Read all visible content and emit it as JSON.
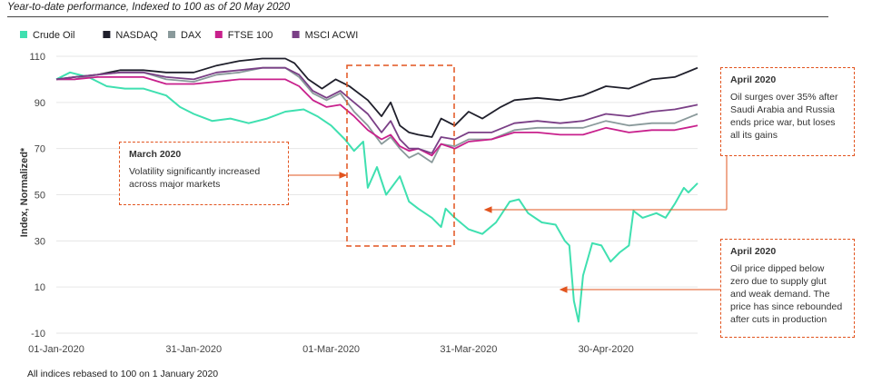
{
  "header": {
    "subtitle": "Year-to-date performance, Indexed to 100 as of 20 May 2020"
  },
  "footnote": "All indices rebased to 100 on 1 January  2020",
  "annotations": [
    {
      "title": "March 2020",
      "text": "Volatility significantly increased across major markets"
    },
    {
      "title": "April 2020",
      "text": "Oil surges over 35%  after Saudi Arabia and Russia ends price war, but loses all its gains"
    },
    {
      "title": "April 2020",
      "text": "Oil price dipped below zero due to supply glut and weak demand. The price has since rebounded after cuts in production"
    }
  ],
  "colors": {
    "crude_oil": "#3fe0b0",
    "nasdaq": "#1f1f2b",
    "dax": "#8a9a9b",
    "ftse": "#c8208c",
    "msci": "#7a3f86",
    "annotation": "#e2541f",
    "axis_text": "#444444",
    "grid": "#e6e6e6"
  },
  "chart_data": {
    "type": "line",
    "title": "",
    "xlabel": "",
    "ylabel": "Index, Normalized*",
    "x_ticks": [
      "01-Jan-2020",
      "31-Jan-2020",
      "01-Mar-2020",
      "31-Mar-2020",
      "30-Apr-2020"
    ],
    "y_ticks": [
      "-10",
      "10",
      "30",
      "50",
      "70",
      "90",
      "110"
    ],
    "ylim": [
      -10,
      110
    ],
    "xlim": [
      "2020-01-01",
      "2020-05-20"
    ],
    "grid": "horizontal",
    "legend_position": "top-left",
    "series": [
      {
        "name": "Crude Oil",
        "key": "crude_oil",
        "points": [
          [
            "2020-01-01",
            100
          ],
          [
            "2020-01-04",
            103
          ],
          [
            "2020-01-08",
            101
          ],
          [
            "2020-01-12",
            97
          ],
          [
            "2020-01-16",
            96
          ],
          [
            "2020-01-20",
            96
          ],
          [
            "2020-01-25",
            93
          ],
          [
            "2020-01-28",
            88
          ],
          [
            "2020-01-31",
            85
          ],
          [
            "2020-02-04",
            82
          ],
          [
            "2020-02-08",
            83
          ],
          [
            "2020-02-12",
            81
          ],
          [
            "2020-02-16",
            83
          ],
          [
            "2020-02-20",
            86
          ],
          [
            "2020-02-24",
            87
          ],
          [
            "2020-02-27",
            84
          ],
          [
            "2020-03-01",
            80
          ],
          [
            "2020-03-04",
            74
          ],
          [
            "2020-03-06",
            69
          ],
          [
            "2020-03-08",
            73
          ],
          [
            "2020-03-09",
            53
          ],
          [
            "2020-03-11",
            62
          ],
          [
            "2020-03-13",
            50
          ],
          [
            "2020-03-16",
            58
          ],
          [
            "2020-03-18",
            47
          ],
          [
            "2020-03-20",
            44
          ],
          [
            "2020-03-23",
            40
          ],
          [
            "2020-03-25",
            36
          ],
          [
            "2020-03-26",
            44
          ],
          [
            "2020-03-28",
            40
          ],
          [
            "2020-03-31",
            35
          ],
          [
            "2020-04-03",
            33
          ],
          [
            "2020-04-06",
            38
          ],
          [
            "2020-04-09",
            47
          ],
          [
            "2020-04-11",
            48
          ],
          [
            "2020-04-13",
            42
          ],
          [
            "2020-04-16",
            38
          ],
          [
            "2020-04-19",
            37
          ],
          [
            "2020-04-21",
            30
          ],
          [
            "2020-04-22",
            28
          ],
          [
            "2020-04-23",
            4
          ],
          [
            "2020-04-24",
            -5
          ],
          [
            "2020-04-25",
            15
          ],
          [
            "2020-04-27",
            29
          ],
          [
            "2020-04-29",
            28
          ],
          [
            "2020-05-01",
            21
          ],
          [
            "2020-05-03",
            25
          ],
          [
            "2020-05-05",
            28
          ],
          [
            "2020-05-06",
            43
          ],
          [
            "2020-05-08",
            40
          ],
          [
            "2020-05-11",
            42
          ],
          [
            "2020-05-13",
            40
          ],
          [
            "2020-05-15",
            46
          ],
          [
            "2020-05-17",
            53
          ],
          [
            "2020-05-18",
            51
          ],
          [
            "2020-05-20",
            55
          ]
        ]
      },
      {
        "name": "NASDAQ",
        "key": "nasdaq",
        "points": [
          [
            "2020-01-01",
            100
          ],
          [
            "2020-01-05",
            101
          ],
          [
            "2020-01-10",
            102
          ],
          [
            "2020-01-15",
            104
          ],
          [
            "2020-01-20",
            104
          ],
          [
            "2020-01-25",
            103
          ],
          [
            "2020-01-31",
            103
          ],
          [
            "2020-02-05",
            106
          ],
          [
            "2020-02-10",
            108
          ],
          [
            "2020-02-15",
            109
          ],
          [
            "2020-02-20",
            109
          ],
          [
            "2020-02-22",
            107
          ],
          [
            "2020-02-25",
            100
          ],
          [
            "2020-02-28",
            96
          ],
          [
            "2020-03-02",
            100
          ],
          [
            "2020-03-05",
            97
          ],
          [
            "2020-03-09",
            91
          ],
          [
            "2020-03-12",
            84
          ],
          [
            "2020-03-14",
            90
          ],
          [
            "2020-03-16",
            80
          ],
          [
            "2020-03-18",
            77
          ],
          [
            "2020-03-20",
            76
          ],
          [
            "2020-03-23",
            75
          ],
          [
            "2020-03-25",
            83
          ],
          [
            "2020-03-28",
            80
          ],
          [
            "2020-03-31",
            86
          ],
          [
            "2020-04-03",
            83
          ],
          [
            "2020-04-07",
            88
          ],
          [
            "2020-04-10",
            91
          ],
          [
            "2020-04-15",
            92
          ],
          [
            "2020-04-20",
            91
          ],
          [
            "2020-04-25",
            93
          ],
          [
            "2020-04-30",
            97
          ],
          [
            "2020-05-05",
            96
          ],
          [
            "2020-05-10",
            100
          ],
          [
            "2020-05-15",
            101
          ],
          [
            "2020-05-20",
            105
          ]
        ]
      },
      {
        "name": "DAX",
        "key": "dax",
        "points": [
          [
            "2020-01-01",
            100
          ],
          [
            "2020-01-05",
            100
          ],
          [
            "2020-01-10",
            102
          ],
          [
            "2020-01-15",
            103
          ],
          [
            "2020-01-20",
            103
          ],
          [
            "2020-01-25",
            100
          ],
          [
            "2020-01-31",
            99
          ],
          [
            "2020-02-05",
            102
          ],
          [
            "2020-02-10",
            103
          ],
          [
            "2020-02-15",
            105
          ],
          [
            "2020-02-20",
            105
          ],
          [
            "2020-02-23",
            101
          ],
          [
            "2020-02-26",
            94
          ],
          [
            "2020-02-29",
            91
          ],
          [
            "2020-03-03",
            94
          ],
          [
            "2020-03-06",
            86
          ],
          [
            "2020-03-09",
            80
          ],
          [
            "2020-03-12",
            72
          ],
          [
            "2020-03-14",
            75
          ],
          [
            "2020-03-16",
            70
          ],
          [
            "2020-03-18",
            66
          ],
          [
            "2020-03-20",
            68
          ],
          [
            "2020-03-23",
            64
          ],
          [
            "2020-03-25",
            72
          ],
          [
            "2020-03-28",
            71
          ],
          [
            "2020-03-31",
            74
          ],
          [
            "2020-04-05",
            74
          ],
          [
            "2020-04-10",
            78
          ],
          [
            "2020-04-15",
            79
          ],
          [
            "2020-04-20",
            79
          ],
          [
            "2020-04-25",
            79
          ],
          [
            "2020-04-30",
            82
          ],
          [
            "2020-05-05",
            80
          ],
          [
            "2020-05-10",
            81
          ],
          [
            "2020-05-15",
            81
          ],
          [
            "2020-05-20",
            85
          ]
        ]
      },
      {
        "name": "FTSE 100",
        "key": "ftse",
        "points": [
          [
            "2020-01-01",
            100
          ],
          [
            "2020-01-05",
            100
          ],
          [
            "2020-01-10",
            101
          ],
          [
            "2020-01-15",
            101
          ],
          [
            "2020-01-20",
            101
          ],
          [
            "2020-01-25",
            98
          ],
          [
            "2020-01-31",
            98
          ],
          [
            "2020-02-05",
            99
          ],
          [
            "2020-02-10",
            100
          ],
          [
            "2020-02-15",
            100
          ],
          [
            "2020-02-20",
            100
          ],
          [
            "2020-02-23",
            97
          ],
          [
            "2020-02-26",
            91
          ],
          [
            "2020-02-29",
            88
          ],
          [
            "2020-03-03",
            89
          ],
          [
            "2020-03-06",
            84
          ],
          [
            "2020-03-09",
            78
          ],
          [
            "2020-03-12",
            74
          ],
          [
            "2020-03-14",
            76
          ],
          [
            "2020-03-16",
            71
          ],
          [
            "2020-03-18",
            69
          ],
          [
            "2020-03-20",
            70
          ],
          [
            "2020-03-23",
            67
          ],
          [
            "2020-03-25",
            72
          ],
          [
            "2020-03-28",
            70
          ],
          [
            "2020-03-31",
            73
          ],
          [
            "2020-04-05",
            74
          ],
          [
            "2020-04-10",
            77
          ],
          [
            "2020-04-15",
            77
          ],
          [
            "2020-04-20",
            76
          ],
          [
            "2020-04-25",
            76
          ],
          [
            "2020-04-30",
            79
          ],
          [
            "2020-05-05",
            77
          ],
          [
            "2020-05-10",
            78
          ],
          [
            "2020-05-15",
            78
          ],
          [
            "2020-05-20",
            80
          ]
        ]
      },
      {
        "name": "MSCI ACWI",
        "key": "msci",
        "points": [
          [
            "2020-01-01",
            100
          ],
          [
            "2020-01-05",
            101
          ],
          [
            "2020-01-10",
            102
          ],
          [
            "2020-01-15",
            103
          ],
          [
            "2020-01-20",
            103
          ],
          [
            "2020-01-25",
            101
          ],
          [
            "2020-01-31",
            100
          ],
          [
            "2020-02-05",
            103
          ],
          [
            "2020-02-10",
            104
          ],
          [
            "2020-02-15",
            105
          ],
          [
            "2020-02-20",
            105
          ],
          [
            "2020-02-23",
            102
          ],
          [
            "2020-02-26",
            95
          ],
          [
            "2020-02-29",
            92
          ],
          [
            "2020-03-03",
            95
          ],
          [
            "2020-03-06",
            90
          ],
          [
            "2020-03-09",
            85
          ],
          [
            "2020-03-12",
            77
          ],
          [
            "2020-03-14",
            82
          ],
          [
            "2020-03-16",
            74
          ],
          [
            "2020-03-18",
            70
          ],
          [
            "2020-03-20",
            70
          ],
          [
            "2020-03-23",
            68
          ],
          [
            "2020-03-25",
            75
          ],
          [
            "2020-03-28",
            74
          ],
          [
            "2020-03-31",
            77
          ],
          [
            "2020-04-05",
            77
          ],
          [
            "2020-04-10",
            81
          ],
          [
            "2020-04-15",
            82
          ],
          [
            "2020-04-20",
            81
          ],
          [
            "2020-04-25",
            82
          ],
          [
            "2020-04-30",
            85
          ],
          [
            "2020-05-05",
            84
          ],
          [
            "2020-05-10",
            86
          ],
          [
            "2020-05-15",
            87
          ],
          [
            "2020-05-20",
            89
          ]
        ]
      }
    ]
  }
}
